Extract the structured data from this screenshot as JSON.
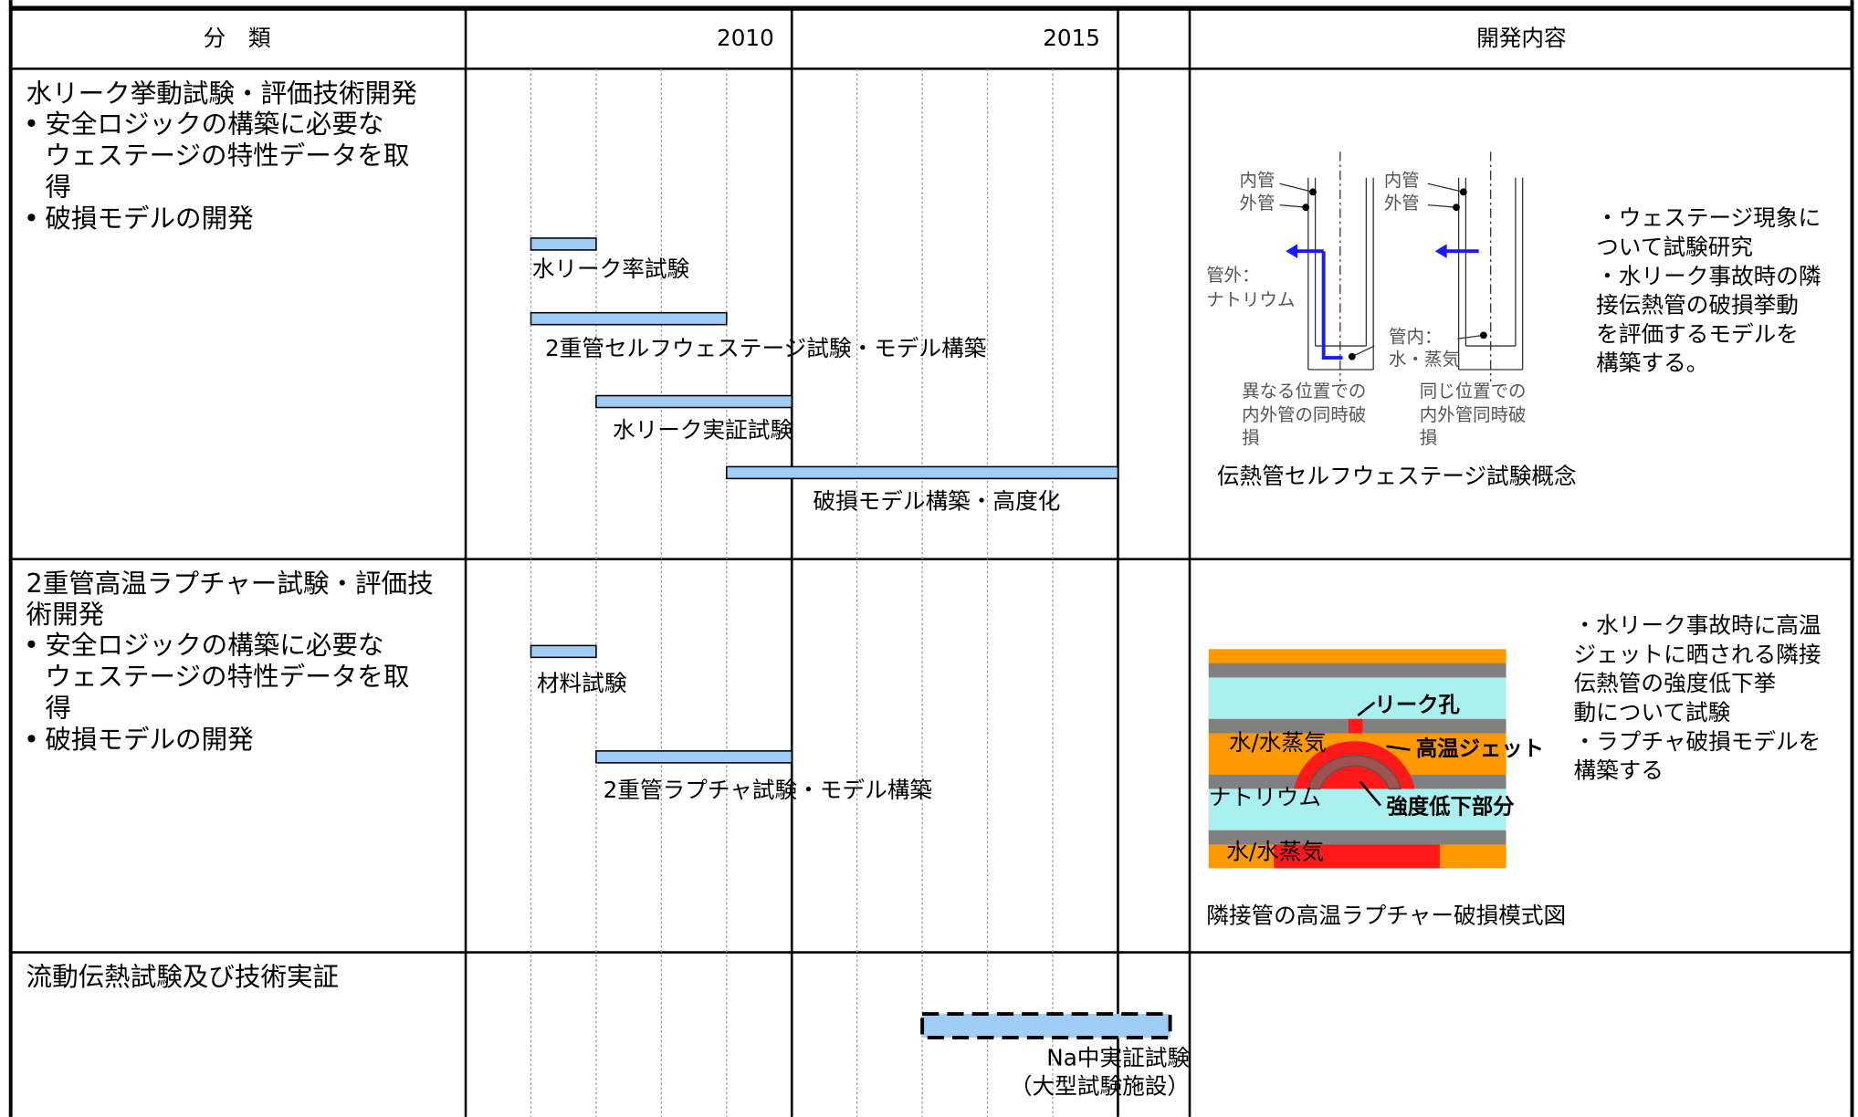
{
  "header": {
    "category": "分　類",
    "years": [
      2010,
      2015
    ],
    "content": "開発内容"
  },
  "timeline": {
    "xlim": [
      2005,
      2016.1
    ],
    "xticks": [
      2006,
      2007,
      2008,
      2009,
      2010,
      2011,
      2012,
      2013,
      2014,
      2015
    ]
  },
  "rows": [
    {
      "title": [
        "水リーク挙動試験・評価技術開発"
      ],
      "bullets": [
        [
          "安全ロジックの構築に必要な",
          "ウェステージの特性データを取",
          "得"
        ],
        [
          "破損モデルの開発"
        ]
      ],
      "tasks": [
        {
          "name": [
            "水リーク率試験"
          ],
          "start": 2006,
          "end": 2007
        },
        {
          "name": [
            "2重管セルフウェステージ試験・モデル構築"
          ],
          "start": 2006,
          "end": 2009
        },
        {
          "name": [
            "水リーク実証試験"
          ],
          "start": 2007,
          "end": 2010
        },
        {
          "name": [
            "破損モデル構築・高度化"
          ],
          "start": 2009,
          "end": 2015
        }
      ],
      "description": [
        "・ウェステージ現象に",
        "ついて試験研究",
        "・水リーク事故時の隣",
        "接伝熱管の破損挙動",
        "を評価するモデルを",
        "構築する。"
      ],
      "figure": {
        "labels": [
          "内管",
          "外管",
          "内管",
          "外管",
          "管外：",
          "ナトリウム",
          "管内：",
          "水・蒸気",
          "異なる位置での",
          "内外管の同時破",
          "損",
          "同じ位置での",
          "内外管同時破",
          "損"
        ],
        "caption": "伝熱管セルフウェステージ試験概念"
      }
    },
    {
      "title": [
        "2重管高温ラプチャー試験・評価技",
        "術開発"
      ],
      "bullets": [
        [
          "安全ロジックの構築に必要な",
          "ウェステージの特性データを取",
          "得"
        ],
        [
          "破損モデルの開発"
        ]
      ],
      "tasks": [
        {
          "name": [
            "材料試験"
          ],
          "start": 2006,
          "end": 2007
        },
        {
          "name": [
            "2重管ラプチャ試験・モデル構築"
          ],
          "start": 2007,
          "end": 2010
        }
      ],
      "description": [
        "・水リーク事故時に高温",
        "ジェットに晒される隣接",
        "伝熱管の強度低下挙",
        "動について試験",
        "・ラプチャ破損モデルを",
        "構築する"
      ],
      "figure": {
        "labels": [
          "リーク孔",
          "高温ジェット",
          "強度低下部分",
          "水/水蒸気",
          "ナトリウム",
          "水/水蒸気"
        ],
        "caption": "隣接管の高温ラプチャー破損模式図"
      }
    },
    {
      "title": [
        "流動伝熱試験及び技術実証"
      ],
      "bullets": [],
      "tasks": [
        {
          "name": [
            "Na中実証試験",
            "（大型試験施設）"
          ],
          "start": 2012,
          "end": 2015.8,
          "planned": true
        }
      ]
    }
  ]
}
